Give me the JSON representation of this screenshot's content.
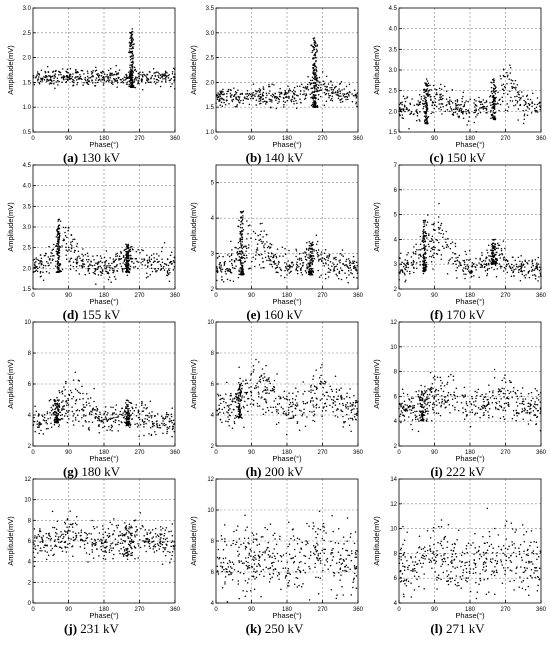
{
  "figure": {
    "xlabel": "Phase(°)",
    "ylabel": "Amplitude(mV)",
    "xticks": [
      "0",
      "90",
      "180",
      "270",
      "360"
    ]
  },
  "chart_data": [
    {
      "type": "scatter",
      "tag": "(a)",
      "voltage": "130 kV",
      "xlabel": "Phase(°)",
      "ylabel": "Amplitude(mV)",
      "xlim": [
        0,
        360
      ],
      "ylim": [
        0.5,
        3.0
      ],
      "yticks": [
        "0.5",
        "1.0",
        "1.5",
        "2.0",
        "2.5",
        "3.0"
      ],
      "base": 1.6,
      "baseNoise": 0.08,
      "clusters": [
        {
          "phase": 250,
          "width": 6,
          "lo": 1.4,
          "hi": 2.6,
          "n": 160
        }
      ],
      "bumps": [],
      "grid": true
    },
    {
      "type": "scatter",
      "tag": "(b)",
      "voltage": "140 kV",
      "xlabel": "Phase(°)",
      "ylabel": "Amplitude(mV)",
      "xlim": [
        0,
        360
      ],
      "ylim": [
        1.0,
        3.5
      ],
      "yticks": [
        "1.0",
        "1.5",
        "2.0",
        "2.5",
        "3.0",
        "3.5"
      ],
      "base": 1.72,
      "baseNoise": 0.1,
      "clusters": [
        {
          "phase": 250,
          "width": 7,
          "lo": 1.5,
          "hi": 2.9,
          "n": 170
        }
      ],
      "bumps": [
        {
          "phase": 260,
          "width": 40,
          "amp": 0.4
        }
      ],
      "grid": true
    },
    {
      "type": "scatter",
      "tag": "(c)",
      "voltage": "150 kV",
      "xlabel": "Phase(°)",
      "ylabel": "Amplitude(mV)",
      "xlim": [
        0,
        360
      ],
      "ylim": [
        1.5,
        4.5
      ],
      "yticks": [
        "1.5",
        "2.0",
        "2.5",
        "3.0",
        "3.5",
        "4.0",
        "4.5"
      ],
      "base": 2.1,
      "baseNoise": 0.15,
      "clusters": [
        {
          "phase": 70,
          "width": 6,
          "lo": 1.7,
          "hi": 2.8,
          "n": 90
        },
        {
          "phase": 240,
          "width": 6,
          "lo": 1.8,
          "hi": 2.8,
          "n": 90
        }
      ],
      "bumps": [
        {
          "phase": 275,
          "width": 30,
          "amp": 1.0
        },
        {
          "phase": 90,
          "width": 30,
          "amp": 0.4
        }
      ],
      "grid": true
    },
    {
      "type": "scatter",
      "tag": "(d)",
      "voltage": "155 kV",
      "xlabel": "Phase(°)",
      "ylabel": "Amplitude(mV)",
      "xlim": [
        0,
        360
      ],
      "ylim": [
        1.5,
        4.5
      ],
      "yticks": [
        "1.5",
        "2.0",
        "2.5",
        "3.0",
        "3.5",
        "4.0",
        "4.5"
      ],
      "base": 2.05,
      "baseNoise": 0.15,
      "clusters": [
        {
          "phase": 65,
          "width": 6,
          "lo": 1.9,
          "hi": 3.2,
          "n": 110
        },
        {
          "phase": 240,
          "width": 7,
          "lo": 1.9,
          "hi": 2.6,
          "n": 110
        }
      ],
      "bumps": [
        {
          "phase": 80,
          "width": 35,
          "amp": 1.0
        },
        {
          "phase": 250,
          "width": 30,
          "amp": 0.4
        }
      ],
      "grid": true
    },
    {
      "type": "scatter",
      "tag": "(e)",
      "voltage": "160 kV",
      "xlabel": "Phase(°)",
      "ylabel": "Amplitude(mV)",
      "xlim": [
        0,
        360
      ],
      "ylim": [
        2,
        5.5
      ],
      "yticks": [
        "2",
        "3",
        "4",
        "5"
      ],
      "base": 2.6,
      "baseNoise": 0.2,
      "clusters": [
        {
          "phase": 65,
          "width": 6,
          "lo": 2.4,
          "hi": 4.2,
          "n": 130
        },
        {
          "phase": 240,
          "width": 8,
          "lo": 2.4,
          "hi": 3.4,
          "n": 100
        }
      ],
      "bumps": [
        {
          "phase": 95,
          "width": 45,
          "amp": 1.3
        },
        {
          "phase": 250,
          "width": 35,
          "amp": 0.6
        }
      ],
      "grid": true
    },
    {
      "type": "scatter",
      "tag": "(f)",
      "voltage": "170 kV",
      "xlabel": "Phase(°)",
      "ylabel": "Amplitude(mV)",
      "xlim": [
        0,
        360
      ],
      "ylim": [
        2,
        7
      ],
      "yticks": [
        "2",
        "3",
        "4",
        "5",
        "6",
        "7"
      ],
      "base": 2.8,
      "baseNoise": 0.25,
      "clusters": [
        {
          "phase": 65,
          "width": 6,
          "lo": 2.7,
          "hi": 4.8,
          "n": 110
        },
        {
          "phase": 240,
          "width": 7,
          "lo": 3.0,
          "hi": 4.1,
          "n": 90
        }
      ],
      "bumps": [
        {
          "phase": 95,
          "width": 50,
          "amp": 2.0
        },
        {
          "phase": 250,
          "width": 35,
          "amp": 0.8
        }
      ],
      "grid": true
    },
    {
      "type": "scatter",
      "tag": "(g)",
      "voltage": "180 kV",
      "xlabel": "Phase(°)",
      "ylabel": "Amplitude(mV)",
      "xlim": [
        0,
        360
      ],
      "ylim": [
        2,
        10
      ],
      "yticks": [
        "2",
        "4",
        "6",
        "8",
        "10"
      ],
      "base": 3.5,
      "baseNoise": 0.45,
      "clusters": [
        {
          "phase": 60,
          "width": 8,
          "lo": 3.5,
          "hi": 5.0,
          "n": 80
        },
        {
          "phase": 240,
          "width": 7,
          "lo": 3.3,
          "hi": 5.0,
          "n": 70
        }
      ],
      "bumps": [
        {
          "phase": 100,
          "width": 55,
          "amp": 2.6
        },
        {
          "phase": 250,
          "width": 40,
          "amp": 1.0
        }
      ],
      "grid": true
    },
    {
      "type": "scatter",
      "tag": "(h)",
      "voltage": "200 kV",
      "xlabel": "Phase(°)",
      "ylabel": "Amplitude(mV)",
      "xlim": [
        0,
        360
      ],
      "ylim": [
        2,
        10
      ],
      "yticks": [
        "2",
        "4",
        "6",
        "8",
        "10"
      ],
      "base": 4.2,
      "baseNoise": 0.6,
      "clusters": [
        {
          "phase": 60,
          "width": 8,
          "lo": 3.8,
          "hi": 6.0,
          "n": 80
        }
      ],
      "bumps": [
        {
          "phase": 105,
          "width": 50,
          "amp": 2.6
        },
        {
          "phase": 265,
          "width": 45,
          "amp": 2.2
        }
      ],
      "grid": true
    },
    {
      "type": "scatter",
      "tag": "(i)",
      "voltage": "222 kV",
      "xlabel": "Phase(°)",
      "ylabel": "Amplitude(mV)",
      "xlim": [
        0,
        360
      ],
      "ylim": [
        2,
        12
      ],
      "yticks": [
        "2",
        "4",
        "6",
        "8",
        "10",
        "12"
      ],
      "base": 5.0,
      "baseNoise": 0.7,
      "clusters": [
        {
          "phase": 60,
          "width": 10,
          "lo": 4.0,
          "hi": 6.5,
          "n": 70
        }
      ],
      "bumps": [
        {
          "phase": 100,
          "width": 55,
          "amp": 2.0
        },
        {
          "phase": 265,
          "width": 50,
          "amp": 1.6
        }
      ],
      "grid": true
    },
    {
      "type": "scatter",
      "tag": "(j)",
      "voltage": "231 kV",
      "xlabel": "Phase(°)",
      "ylabel": "Amplitude(mV)",
      "xlim": [
        0,
        360
      ],
      "ylim": [
        0,
        12
      ],
      "yticks": [
        "0",
        "2",
        "4",
        "6",
        "8",
        "10",
        "12"
      ],
      "base": 5.6,
      "baseNoise": 0.8,
      "clusters": [
        {
          "phase": 240,
          "width": 15,
          "lo": 4.5,
          "hi": 7.5,
          "n": 40
        }
      ],
      "bumps": [
        {
          "phase": 100,
          "width": 55,
          "amp": 1.8
        },
        {
          "phase": 265,
          "width": 50,
          "amp": 1.5
        }
      ],
      "grid": true
    },
    {
      "type": "scatter",
      "tag": "(k)",
      "voltage": "250 kV",
      "xlabel": "Phase(°)",
      "ylabel": "Amplitude(mV)",
      "xlim": [
        0,
        360
      ],
      "ylim": [
        4,
        12
      ],
      "yticks": [
        "4",
        "6",
        "8",
        "10",
        "12"
      ],
      "base": 6.4,
      "baseNoise": 1.0,
      "clusters": [],
      "bumps": [
        {
          "phase": 100,
          "width": 60,
          "amp": 1.2
        },
        {
          "phase": 270,
          "width": 60,
          "amp": 1.5
        }
      ],
      "grid": true
    },
    {
      "type": "scatter",
      "tag": "(l)",
      "voltage": "271 kV",
      "xlabel": "Phase(°)",
      "ylabel": "Amplitude(mV)",
      "xlim": [
        0,
        360
      ],
      "ylim": [
        4,
        14
      ],
      "yticks": [
        "4",
        "6",
        "8",
        "10",
        "12",
        "14"
      ],
      "base": 6.8,
      "baseNoise": 1.2,
      "clusters": [],
      "bumps": [
        {
          "phase": 100,
          "width": 60,
          "amp": 1.4
        },
        {
          "phase": 275,
          "width": 60,
          "amp": 1.8
        }
      ],
      "grid": true
    }
  ]
}
